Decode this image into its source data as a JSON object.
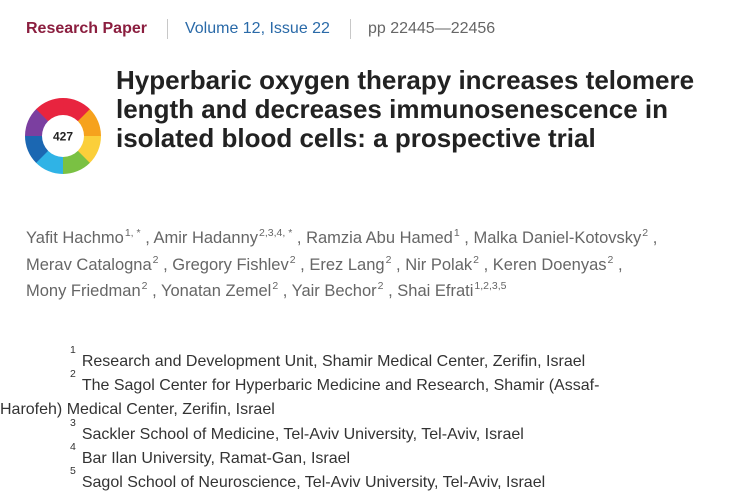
{
  "header": {
    "article_type": "Research Paper",
    "volume_issue": "Volume 12, Issue 22",
    "pages": "pp 22445—22456"
  },
  "badge": {
    "score": "427",
    "colors": [
      "#e8243f",
      "#f6a21d",
      "#fbcf3a",
      "#7ac143",
      "#2fb3e6",
      "#1b67b2",
      "#7b3fa0",
      "#e8243f"
    ]
  },
  "title": "Hyperbaric oxygen therapy increases telomere length and decreases immunosenescence in isolated blood cells: a prospective trial",
  "authors": [
    {
      "name": "Yafit Hachmo",
      "sup": "1, *",
      "sep": ","
    },
    {
      "name": "Amir Hadanny",
      "sup": "2,3,4, *",
      "sep": ","
    },
    {
      "name": "Ramzia Abu Hamed",
      "sup": "1",
      "sep": ","
    },
    {
      "name": "Malka Daniel-Kotovsky",
      "sup": "2",
      "sep": ","
    },
    {
      "name": "Merav Catalogna",
      "sup": "2",
      "sep": ","
    },
    {
      "name": "Gregory Fishlev",
      "sup": "2",
      "sep": ","
    },
    {
      "name": "Erez Lang",
      "sup": "2",
      "sep": ","
    },
    {
      "name": "Nir Polak",
      "sup": "2",
      "sep": ","
    },
    {
      "name": "Keren Doenyas",
      "sup": "2",
      "sep": ","
    },
    {
      "name": "Mony Friedman",
      "sup": "2",
      "sep": ","
    },
    {
      "name": "Yonatan Zemel",
      "sup": "2",
      "sep": ","
    },
    {
      "name": "Yair Bechor",
      "sup": "2",
      "sep": ","
    },
    {
      "name": "Shai Efrati",
      "sup": "1,2,3,5",
      "sep": ""
    }
  ],
  "affiliations": [
    {
      "num": "1",
      "lines": [
        "Research and Development Unit, Shamir Medical Center, Zerifin, Israel"
      ]
    },
    {
      "num": "2",
      "lines": [
        "The Sagol Center for Hyperbaric Medicine and Research, Shamir (Assaf-",
        "Harofeh) Medical Center, Zerifin, Israel"
      ]
    },
    {
      "num": "3",
      "lines": [
        "Sackler School of Medicine, Tel-Aviv University, Tel-Aviv, Israel"
      ]
    },
    {
      "num": "4",
      "lines": [
        "Bar Ilan University, Ramat-Gan, Israel"
      ]
    },
    {
      "num": "5",
      "lines": [
        "Sagol School of Neuroscience, Tel-Aviv University, Tel-Aviv, Israel"
      ]
    }
  ]
}
